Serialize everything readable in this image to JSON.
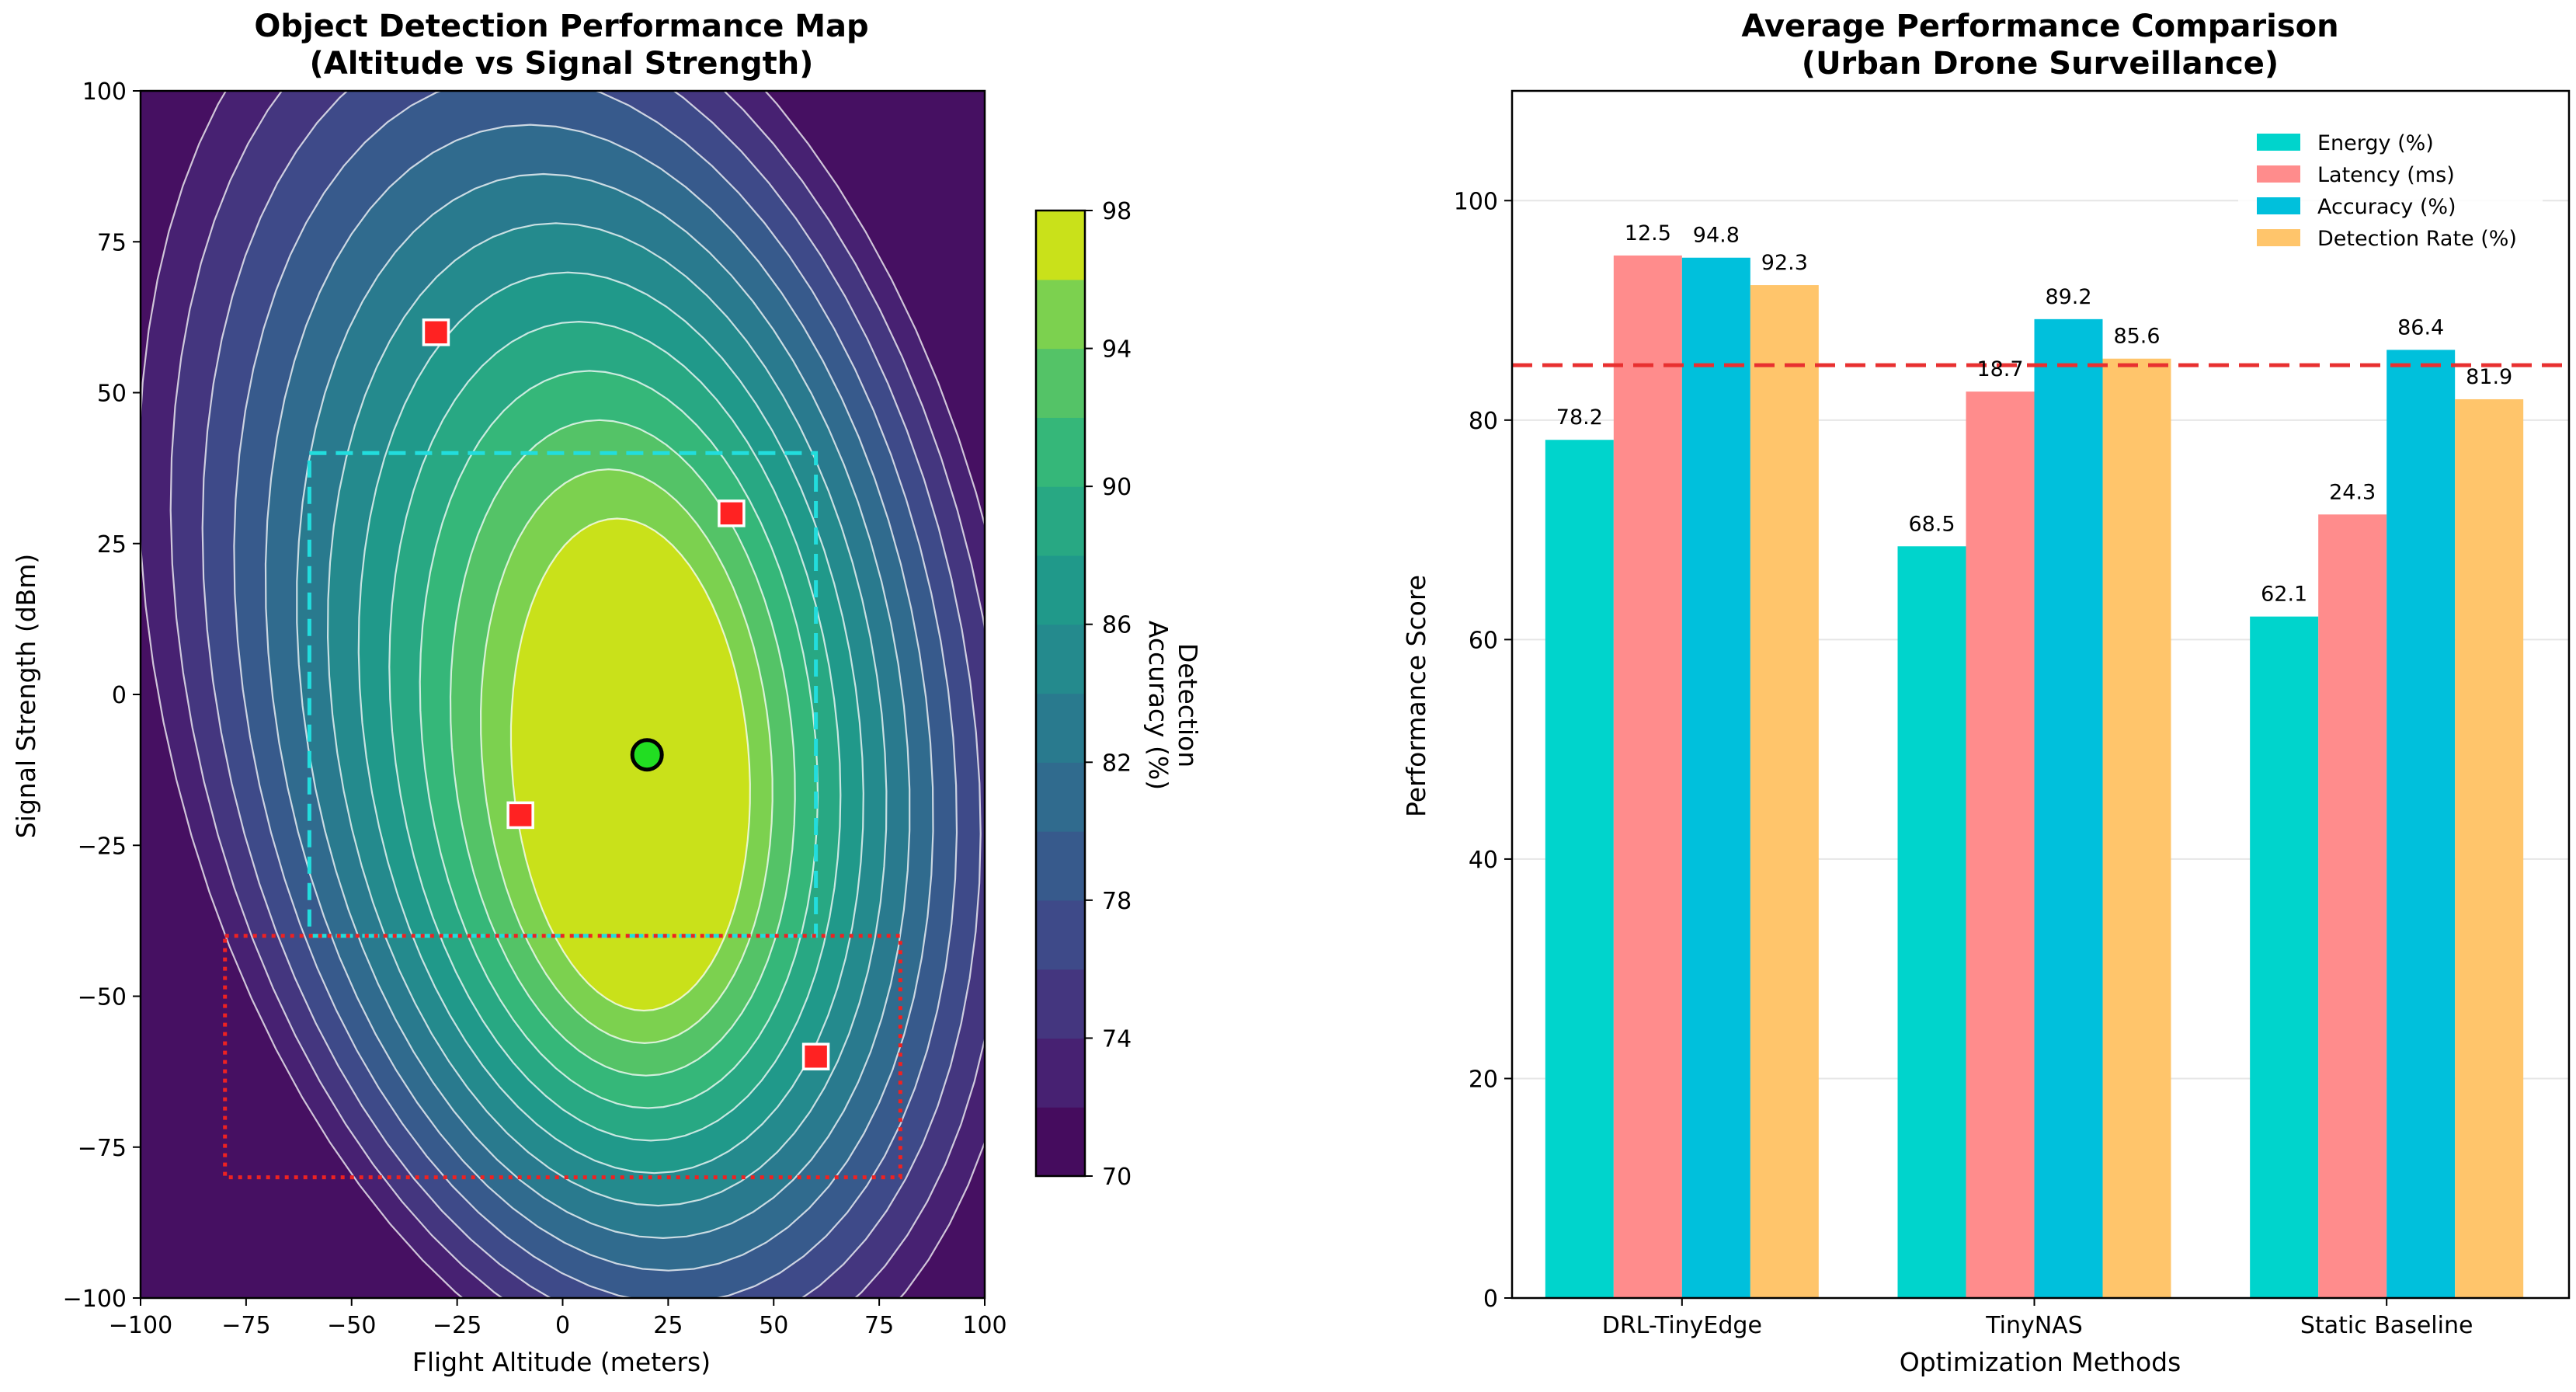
{
  "chart_data": [
    {
      "type": "heatmap",
      "title": "Object Detection Performance Map\n(Altitude vs Signal Strength)",
      "title_lines": [
        "Object Detection Performance Map",
        "(Altitude vs Signal Strength)"
      ],
      "xlabel": "Flight Altitude (meters)",
      "ylabel": "Signal Strength (dBm)",
      "xlim": [
        -100,
        100
      ],
      "ylim": [
        -100,
        100
      ],
      "x_ticks": [
        -100,
        -75,
        -50,
        -25,
        0,
        25,
        50,
        75,
        100
      ],
      "y_ticks": [
        -100,
        -75,
        -50,
        -25,
        0,
        25,
        50,
        75,
        100
      ],
      "x_tick_labels": [
        "−100",
        "−75",
        "−50",
        "−25",
        "0",
        "25",
        "50",
        "75",
        "100"
      ],
      "y_tick_labels": [
        "−100",
        "−75",
        "−50",
        "−25",
        "0",
        "25",
        "50",
        "75",
        "100"
      ],
      "colorbar": {
        "label": "Detection Accuracy (%)",
        "label_lines": [
          "Detection",
          "Accuracy (%)"
        ],
        "range": [
          70,
          98
        ],
        "ticks": [
          70,
          74,
          78,
          82,
          86,
          90,
          94,
          98
        ],
        "levels": [
          70,
          72,
          74,
          76,
          78,
          80,
          82,
          84,
          86,
          88,
          90,
          92,
          94,
          96,
          98
        ],
        "colormap": "viridis"
      },
      "peak": {
        "x": 20,
        "y": -10,
        "value": 98
      },
      "optimal_point": {
        "x": 20,
        "y": -10,
        "color": "#22dd22"
      },
      "markers": [
        {
          "x": -30,
          "y": 60
        },
        {
          "x": 40,
          "y": 30
        },
        {
          "x": -10,
          "y": -20
        },
        {
          "x": 60,
          "y": -60
        }
      ],
      "marker_color": "#ff2222",
      "regions": [
        {
          "style": "dashed",
          "color": "#22dddd",
          "x": [
            -60,
            60
          ],
          "y": [
            -40,
            40
          ]
        },
        {
          "style": "dotted",
          "color": "#ee2222",
          "x": [
            -80,
            80
          ],
          "y": [
            -80,
            -40
          ]
        }
      ]
    },
    {
      "type": "bar",
      "title": "Average Performance Comparison\n(Urban Drone Surveillance)",
      "title_lines": [
        "Average Performance Comparison",
        "(Urban Drone Surveillance)"
      ],
      "xlabel": "Optimization Methods",
      "ylabel": "Performance Score",
      "ylim": [
        0,
        110
      ],
      "y_ticks": [
        0,
        20,
        40,
        60,
        80,
        100
      ],
      "categories": [
        "DRL-TinyEdge",
        "TinyNAS",
        "Static Baseline"
      ],
      "series": [
        {
          "name": "Energy (%)",
          "color": "#00d4cc",
          "values": [
            78.2,
            68.5,
            62.1
          ],
          "labels": [
            "78.2",
            "68.5",
            "62.1"
          ]
        },
        {
          "name": "Latency (ms)",
          "color": "#ff8c8c",
          "values": [
            95.0,
            82.6,
            71.4
          ],
          "labels": [
            "12.5",
            "18.7",
            "24.3"
          ]
        },
        {
          "name": "Accuracy (%)",
          "color": "#00c0dc",
          "values": [
            94.8,
            89.2,
            86.4
          ],
          "labels": [
            "94.8",
            "89.2",
            "86.4"
          ]
        },
        {
          "name": "Detection Rate (%)",
          "color": "#ffc56b",
          "values": [
            92.3,
            85.6,
            81.9
          ],
          "labels": [
            "92.3",
            "85.6",
            "81.9"
          ]
        }
      ],
      "reference_line": {
        "y": 85,
        "color": "#e83030",
        "style": "dashed"
      },
      "grid": true,
      "legend_position": "top-right"
    }
  ]
}
